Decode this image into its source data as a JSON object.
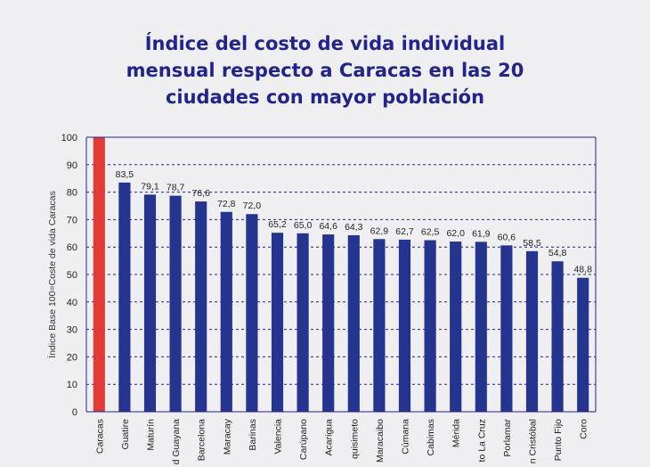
{
  "chart_data": {
    "type": "bar",
    "title_lines": [
      "Índice del costo de vida individual",
      "mensual respecto a Caracas en las 20",
      "ciudades con mayor población"
    ],
    "ylabel": "Índice Base 100=Coste de vida Caracas",
    "xlabel": "",
    "ylim": [
      0,
      100
    ],
    "yticks": [
      "0",
      "10",
      "20",
      "30",
      "40",
      "50",
      "60",
      "70",
      "80",
      "90",
      "100"
    ],
    "grid": "horizontal-dashed",
    "categories": [
      "Caracas",
      "Guatire",
      "Maturín",
      "d Guayana",
      "Barcelona",
      "Maracay",
      "Barinas",
      "Valencia",
      "Carúpano",
      "Acarigua",
      "quisimeto",
      "Maracaibo",
      "Cúmana",
      "Cabimas",
      "Mérida",
      "to La Cruz",
      "Porlamar",
      "n Cristóbal",
      "Punto Fijo",
      "Coro"
    ],
    "values": [
      100,
      83.5,
      79.1,
      78.7,
      76.6,
      72.8,
      72.0,
      65.2,
      65.0,
      64.6,
      64.3,
      62.9,
      62.7,
      62.5,
      62.0,
      61.9,
      60.6,
      58.5,
      54.8,
      48.8
    ],
    "value_labels": [
      "",
      "83,5",
      "79,1",
      "78,7",
      "76,6",
      "72,8",
      "72,0",
      "65,2",
      "65,0",
      "64,6",
      "64,3",
      "62,9",
      "62,7",
      "62,5",
      "62,0",
      "61,9",
      "60,6",
      "58,5",
      "54,8",
      "48,8"
    ],
    "colors": {
      "highlight": "#e23b36",
      "bar": "#24348f",
      "axis": "#23238e",
      "title": "#23238e"
    }
  }
}
